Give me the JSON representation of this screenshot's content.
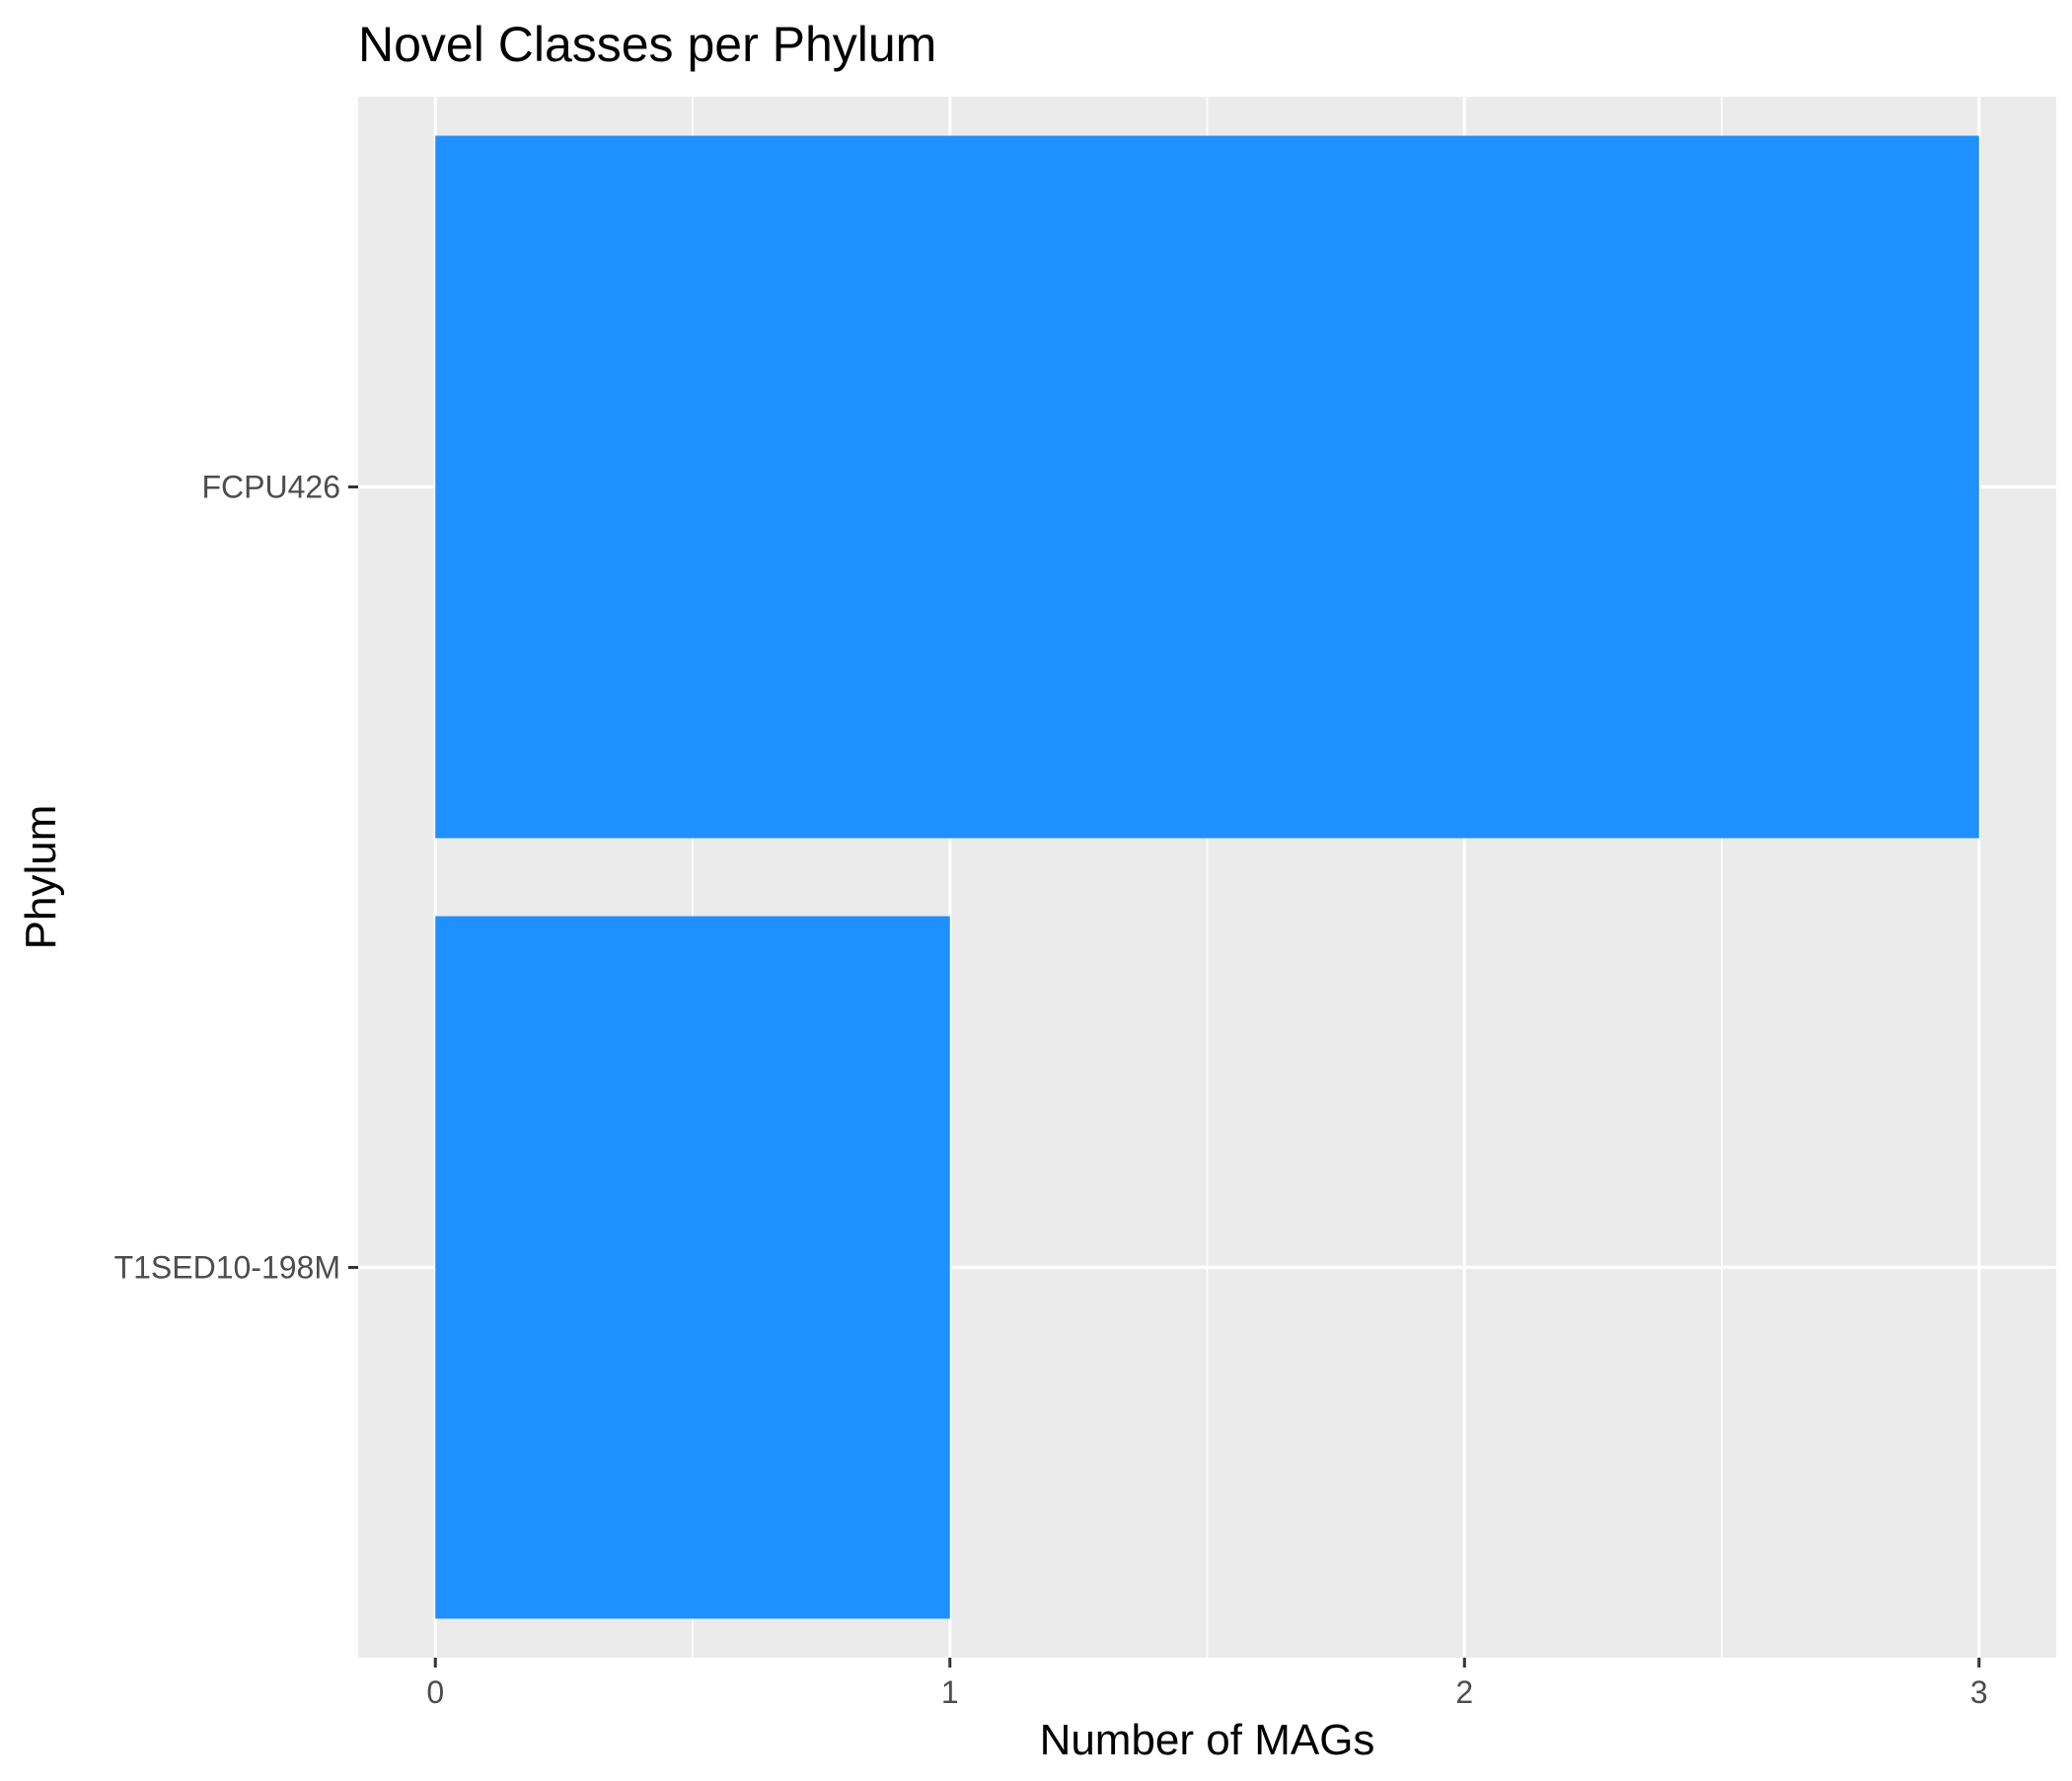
{
  "chart_data": {
    "type": "bar",
    "orientation": "horizontal",
    "title": "Novel Classes per Phylum",
    "xlabel": "Number of MAGs",
    "ylabel": "Phylum",
    "categories": [
      "FCPU426",
      "T1SED10-198M"
    ],
    "values": [
      3,
      1
    ],
    "xlim": [
      -0.15,
      3.15
    ],
    "xticks": [
      "0",
      "1",
      "2",
      "3"
    ],
    "grid": true,
    "legend": "none",
    "colors": {
      "bar": "#1E90FF",
      "panel_background": "#EBEBEB",
      "grid_line": "#FFFFFF",
      "tick_label": "#4D4D4D",
      "tick_mark": "#333333",
      "text": "#000000"
    }
  }
}
